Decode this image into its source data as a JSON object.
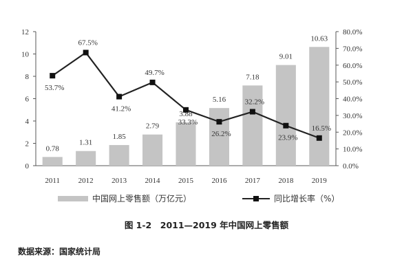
{
  "chart_data": {
    "type": "bar+line",
    "title": "",
    "categories": [
      "2011",
      "2012",
      "2013",
      "2014",
      "2015",
      "2016",
      "2017",
      "2018",
      "2019"
    ],
    "left_axis": {
      "min": 0,
      "max": 12,
      "ticks": [
        "0",
        "2",
        "4",
        "6",
        "8",
        "10",
        "12"
      ]
    },
    "right_axis": {
      "min": 0,
      "max": 80,
      "ticks": [
        "0.0%",
        "10.0%",
        "20.0%",
        "30.0%",
        "40.0%",
        "50.0%",
        "60.0%",
        "70.0%",
        "80.0%"
      ]
    },
    "series": [
      {
        "name": "中国网上零售额（万亿元）",
        "kind": "bar",
        "axis": "left",
        "values": [
          0.78,
          1.31,
          1.85,
          2.79,
          3.88,
          5.16,
          7.18,
          9.01,
          10.63
        ],
        "labels": [
          "0.78",
          "1.31",
          "1.85",
          "2.79",
          "3.88",
          "5.16",
          "7.18",
          "9.01",
          "10.63"
        ]
      },
      {
        "name": "同比增长率（%）",
        "kind": "line",
        "axis": "right",
        "values": [
          53.7,
          67.5,
          41.2,
          49.7,
          33.3,
          26.2,
          32.2,
          23.9,
          16.5
        ],
        "labels": [
          "53.7%",
          "67.5%",
          "41.2%",
          "49.7%",
          "33.3%",
          "26.2%",
          "32.2%",
          "23.9%",
          "16.5%"
        ]
      }
    ],
    "grid": false,
    "legend_position": "bottom",
    "colors": {
      "bar": "#c4c4c4",
      "line": "#222222",
      "marker": "#111111"
    }
  },
  "caption": "图 1-2　2011—2019 年中国网上零售额",
  "source": "数据来源：国家统计局"
}
